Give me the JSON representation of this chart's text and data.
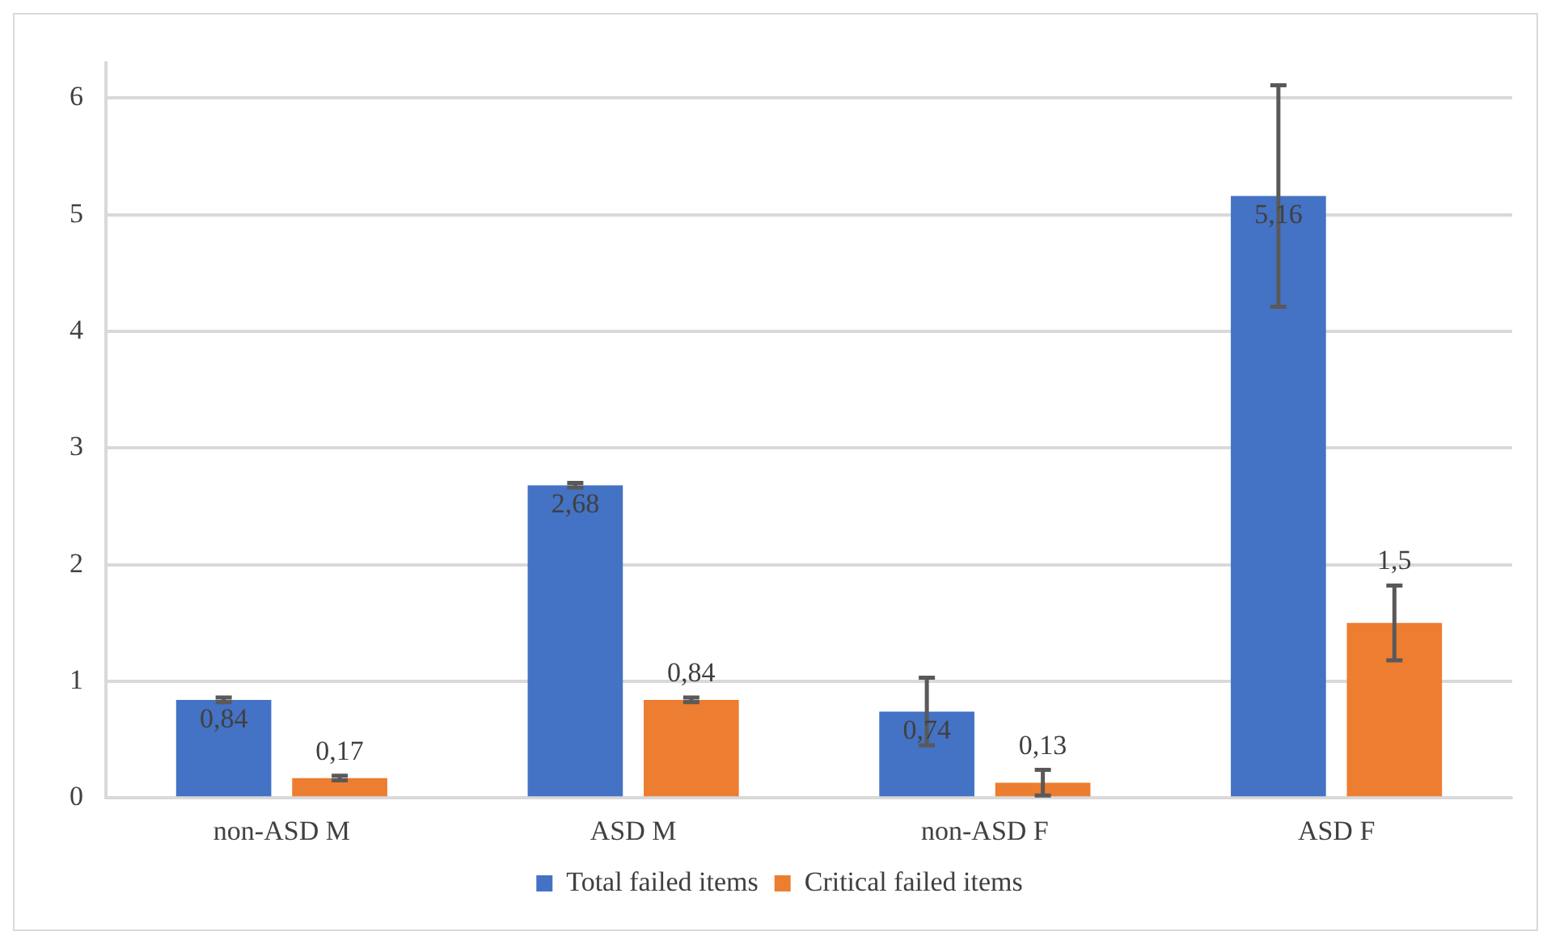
{
  "chart_data": {
    "type": "bar",
    "categories": [
      "non-ASD M",
      "ASD M",
      "non-ASD F",
      "ASD F"
    ],
    "series": [
      {
        "name": "Total failed items",
        "color": "#4472c4",
        "values": [
          0.84,
          2.68,
          0.74,
          5.16
        ],
        "errors": [
          0.02,
          0.02,
          0.29,
          0.95
        ],
        "value_labels": [
          "0,84",
          "2,68",
          "0,74",
          "5,16"
        ]
      },
      {
        "name": "Critical failed items",
        "color": "#ed7d31",
        "values": [
          0.17,
          0.84,
          0.13,
          1.5
        ],
        "errors": [
          0.02,
          0.02,
          0.11,
          0.32
        ],
        "value_labels": [
          "0,17",
          "0,84",
          "0,13",
          "1,5"
        ]
      }
    ],
    "ylim": [
      0,
      6.3
    ],
    "yticks": [
      0,
      1,
      2,
      3,
      4,
      5,
      6
    ],
    "grid": "y",
    "legend": "bottom"
  }
}
